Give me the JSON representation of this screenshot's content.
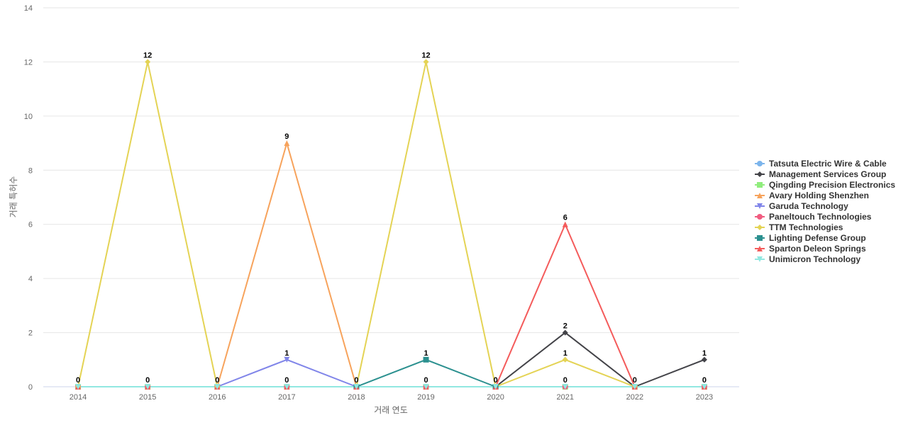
{
  "chart_data": {
    "type": "line",
    "title": "",
    "xlabel": "거래 연도",
    "ylabel": "거래 특허수",
    "ylim": [
      0,
      14
    ],
    "yticks": [
      0,
      2,
      4,
      6,
      8,
      10,
      12,
      14
    ],
    "grid": true,
    "legend_position": "right",
    "categories": [
      "2014",
      "2015",
      "2016",
      "2017",
      "2018",
      "2019",
      "2020",
      "2021",
      "2022",
      "2023"
    ],
    "series": [
      {
        "name": "Tatsuta Electric Wire & Cable",
        "color": "#7cb5ec",
        "marker": "circle",
        "values": [
          0,
          0,
          0,
          0,
          0,
          0,
          0,
          0,
          0,
          0
        ]
      },
      {
        "name": "Management Services Group",
        "color": "#434348",
        "marker": "diamond",
        "values": [
          null,
          null,
          null,
          null,
          null,
          null,
          0,
          2,
          0,
          1
        ]
      },
      {
        "name": "Qingding Precision Electronics",
        "color": "#90ed7d",
        "marker": "square",
        "values": [
          0,
          0,
          0,
          0,
          0,
          0,
          0,
          0,
          0,
          0
        ]
      },
      {
        "name": "Avary Holding Shenzhen",
        "color": "#f7a35c",
        "marker": "triangle",
        "values": [
          null,
          null,
          0,
          9,
          0,
          null,
          null,
          null,
          null,
          null
        ]
      },
      {
        "name": "Garuda Technology",
        "color": "#8085e9",
        "marker": "triangle-down",
        "values": [
          null,
          null,
          0,
          1,
          0,
          null,
          null,
          null,
          null,
          null
        ]
      },
      {
        "name": "Paneltouch Technologies",
        "color": "#f15c80",
        "marker": "circle",
        "values": [
          0,
          0,
          0,
          0,
          0,
          0,
          0,
          0,
          0,
          0
        ]
      },
      {
        "name": "TTM Technologies",
        "color": "#e4d354",
        "marker": "diamond",
        "values": [
          0,
          12,
          0,
          null,
          0,
          12,
          0,
          1,
          0,
          null
        ]
      },
      {
        "name": "Lighting Defense Group",
        "color": "#2b908f",
        "marker": "square",
        "values": [
          null,
          null,
          null,
          null,
          0,
          1,
          0,
          null,
          null,
          null
        ]
      },
      {
        "name": "Sparton Deleon Springs",
        "color": "#f45b5b",
        "marker": "triangle",
        "values": [
          0,
          0,
          0,
          0,
          0,
          0,
          0,
          6,
          0,
          0
        ]
      },
      {
        "name": "Unimicron Technology",
        "color": "#91e8e1",
        "marker": "triangle-down",
        "values": [
          0,
          0,
          0,
          0,
          0,
          0,
          0,
          0,
          0,
          0
        ]
      }
    ],
    "data_labels": [
      {
        "x": "2014",
        "value": 0
      },
      {
        "x": "2015",
        "value": 12
      },
      {
        "x": "2015",
        "value": 0
      },
      {
        "x": "2016",
        "value": 0
      },
      {
        "x": "2017",
        "value": 9
      },
      {
        "x": "2017",
        "value": 1
      },
      {
        "x": "2017",
        "value": 0
      },
      {
        "x": "2018",
        "value": 0
      },
      {
        "x": "2019",
        "value": 12
      },
      {
        "x": "2019",
        "value": 1
      },
      {
        "x": "2019",
        "value": 0
      },
      {
        "x": "2020",
        "value": 0
      },
      {
        "x": "2021",
        "value": 6
      },
      {
        "x": "2021",
        "value": 2
      },
      {
        "x": "2021",
        "value": 1
      },
      {
        "x": "2021",
        "value": 0
      },
      {
        "x": "2022",
        "value": 0
      },
      {
        "x": "2023",
        "value": 1
      },
      {
        "x": "2023",
        "value": 0
      }
    ]
  }
}
